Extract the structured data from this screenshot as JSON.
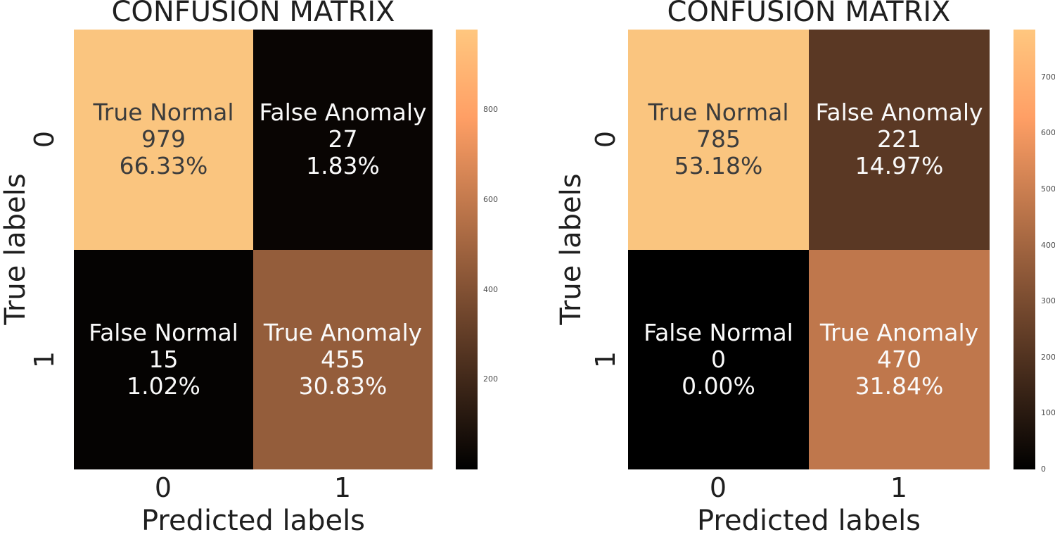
{
  "chart_data": [
    {
      "type": "heatmap",
      "title": "CONFUSION MATRIX",
      "xlabel": "Predicted labels",
      "ylabel": "True labels",
      "x_ticklabels": [
        "0",
        "1"
      ],
      "y_ticklabels": [
        "0",
        "1"
      ],
      "colormap": "copper",
      "vmin": 0,
      "vmax": 979,
      "colorbar_ticks": [
        200,
        400,
        600,
        800
      ],
      "matrix": [
        [
          979,
          27
        ],
        [
          15,
          455
        ]
      ],
      "cells": [
        {
          "row": 0,
          "col": 0,
          "label": "True Normal",
          "count": "979",
          "percent": "66.33%",
          "bg": "#fac57f",
          "fg": "#3c3c3c"
        },
        {
          "row": 0,
          "col": 1,
          "label": "False Anomaly",
          "count": "27",
          "percent": "1.83%",
          "bg": "#090503",
          "fg": "#fafafa"
        },
        {
          "row": 1,
          "col": 0,
          "label": "False Normal",
          "count": "15",
          "percent": "1.02%",
          "bg": "#050302",
          "fg": "#fafafa"
        },
        {
          "row": 1,
          "col": 1,
          "label": "True Anomaly",
          "count": "455",
          "percent": "30.83%",
          "bg": "#945d3b",
          "fg": "#fafafa"
        }
      ]
    },
    {
      "type": "heatmap",
      "title": "CONFUSION MATRIX",
      "xlabel": "Predicted labels",
      "ylabel": "True labels",
      "x_ticklabels": [
        "0",
        "1"
      ],
      "y_ticklabels": [
        "0",
        "1"
      ],
      "colormap": "copper",
      "vmin": 0,
      "vmax": 785,
      "colorbar_ticks": [
        0,
        100,
        200,
        300,
        400,
        500,
        600,
        700
      ],
      "matrix": [
        [
          785,
          221
        ],
        [
          0,
          470
        ]
      ],
      "cells": [
        {
          "row": 0,
          "col": 0,
          "label": "True Normal",
          "count": "785",
          "percent": "53.18%",
          "bg": "#fac57f",
          "fg": "#3c3c3c"
        },
        {
          "row": 0,
          "col": 1,
          "label": "False Anomaly",
          "count": "221",
          "percent": "14.97%",
          "bg": "#5a3824",
          "fg": "#fafafa"
        },
        {
          "row": 1,
          "col": 0,
          "label": "False Normal",
          "count": "0",
          "percent": "0.00%",
          "bg": "#000000",
          "fg": "#fafafa"
        },
        {
          "row": 1,
          "col": 1,
          "label": "True Anomaly",
          "count": "470",
          "percent": "31.84%",
          "bg": "#bf774c",
          "fg": "#fafafa"
        }
      ]
    }
  ],
  "colors": {
    "background": "#ffffff",
    "label_text": "#1f1f1f",
    "colorbar_tick_text": "#4b4b4b",
    "colorbar_gradient_bottom": "#000000",
    "colorbar_gradient_80pct": "#ff9f65",
    "colorbar_gradient_top": "#ffc77f"
  }
}
